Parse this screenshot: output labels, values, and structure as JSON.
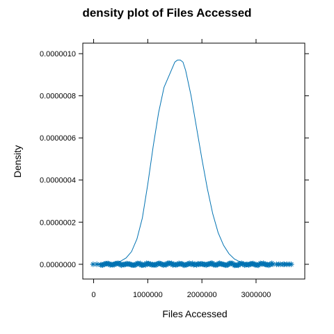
{
  "chart_data": {
    "type": "line",
    "title": "density plot of Files Accessed",
    "xlabel": "Files Accessed",
    "ylabel": "Density",
    "xlim": [
      -200000,
      3900000
    ],
    "ylim": [
      -7e-08,
      1.05e-06
    ],
    "x_ticks": [
      0,
      1000000,
      2000000,
      3000000
    ],
    "x_tick_labels": [
      "0",
      "1000000",
      "2000000",
      "3000000"
    ],
    "y_ticks": [
      0,
      2e-07,
      4e-07,
      6e-07,
      8e-07,
      1e-06
    ],
    "y_tick_labels": [
      "0.0000000",
      "0.0000002",
      "0.0000004",
      "0.0000006",
      "0.0000008",
      "0.0000010"
    ],
    "grid": false,
    "line_color": "#0072B2",
    "series": [
      {
        "x": [
          -60000,
          0,
          200000,
          400000,
          500000,
          600000,
          700000,
          800000,
          900000,
          1000000,
          1100000,
          1200000,
          1300000,
          1350000,
          1400000,
          1450000,
          1500000,
          1550000,
          1600000,
          1650000,
          1700000,
          1750000,
          1800000,
          1900000,
          2000000,
          2100000,
          2200000,
          2300000,
          2400000,
          2500000,
          2600000,
          2700000,
          2800000,
          3000000,
          3200000,
          3400000,
          3700000
        ],
        "y": [
          0,
          0,
          2e-09,
          8e-09,
          1.5e-08,
          3e-08,
          6e-08,
          1.2e-07,
          2.2e-07,
          3.8e-07,
          5.6e-07,
          7.2e-07,
          8.4e-07,
          8.7e-07,
          9e-07,
          9.3e-07,
          9.6e-07,
          9.7e-07,
          9.7e-07,
          9.6e-07,
          9.2e-07,
          8.6e-07,
          8e-07,
          6.5e-07,
          5e-07,
          3.6e-07,
          2.4e-07,
          1.5e-07,
          9e-08,
          5e-08,
          2.5e-08,
          1.2e-08,
          5e-09,
          1e-09,
          0,
          0,
          0
        ]
      }
    ],
    "rug": {
      "marker": "asterisk",
      "y": 0,
      "dense_range": [
        130000,
        3330000
      ],
      "outlier_x": [
        -10000,
        60000,
        3380000,
        3420000,
        3450000,
        3500000,
        3520000,
        3560000,
        3590000,
        3620000,
        3650000
      ]
    }
  }
}
